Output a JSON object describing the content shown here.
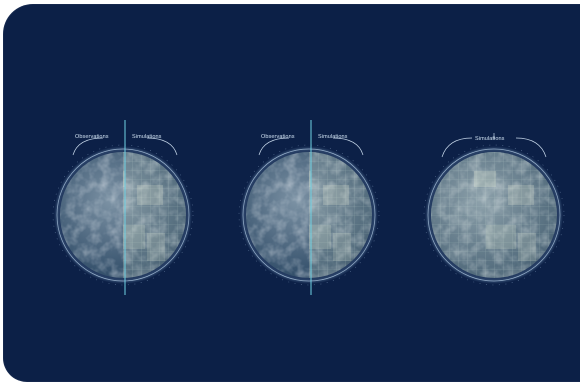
{
  "colors": {
    "background": "#0c2047",
    "page": "#ffffff",
    "ring": "#9bb7d6",
    "divider": "#6fd3e6",
    "simulation_tint": "#d9e6c8",
    "ocean": "#3f5d78"
  },
  "globes": [
    {
      "observation_label": "Observations",
      "simulation_label": "Simulations",
      "view": "split"
    },
    {
      "observation_label": "Observations",
      "simulation_label": "Simulations",
      "view": "split"
    },
    {
      "observation_label": "",
      "simulation_label": "Simulations",
      "view": "full-simulation"
    }
  ]
}
